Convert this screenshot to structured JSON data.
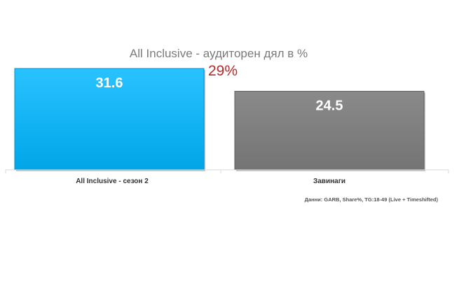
{
  "chart_data": {
    "type": "bar",
    "title": "All Inclusive - аудиторен дял в %",
    "annotation": "29%",
    "categories": [
      "All Inclusive - сезон 2",
      "Завинаги"
    ],
    "values": [
      31.6,
      24.5
    ],
    "colors": [
      "#00b0f0",
      "#7f7f7f"
    ],
    "ylim": [
      0,
      31.6
    ],
    "source_note": "Данни: GARB, Share%, TG:18-49 (Live + Timeshifted)",
    "grid": false,
    "legend": "none"
  }
}
